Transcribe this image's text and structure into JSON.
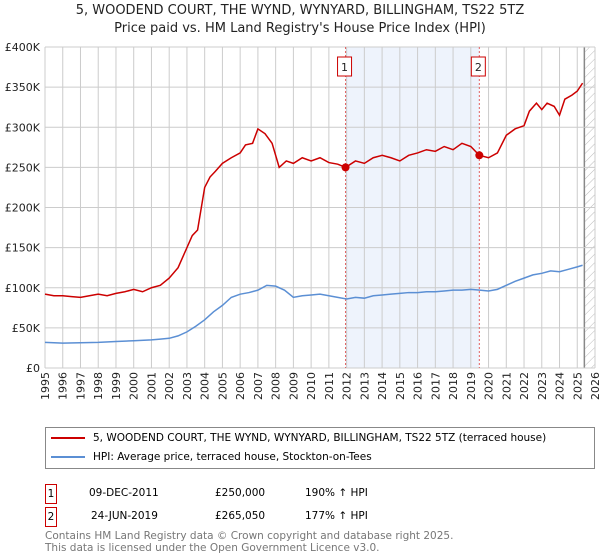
{
  "chart_data": {
    "type": "line",
    "title": "5, WOODEND COURT, THE WYND, WYNYARD, BILLINGHAM, TS22 5TZ",
    "subtitle": "Price paid vs. HM Land Registry's House Price Index (HPI)",
    "xlim": [
      1995,
      2026
    ],
    "ylim": [
      0,
      400000
    ],
    "yticks": [
      {
        "v": 0,
        "label": "£0"
      },
      {
        "v": 50000,
        "label": "£50K"
      },
      {
        "v": 100000,
        "label": "£100K"
      },
      {
        "v": 150000,
        "label": "£150K"
      },
      {
        "v": 200000,
        "label": "£200K"
      },
      {
        "v": 250000,
        "label": "£250K"
      },
      {
        "v": 300000,
        "label": "£300K"
      },
      {
        "v": 350000,
        "label": "£350K"
      },
      {
        "v": 400000,
        "label": "£400K"
      }
    ],
    "xticks": [
      "1995",
      "1996",
      "1997",
      "1998",
      "1999",
      "2000",
      "2001",
      "2002",
      "2003",
      "2004",
      "2005",
      "2006",
      "2007",
      "2008",
      "2009",
      "2010",
      "2011",
      "2012",
      "2013",
      "2014",
      "2015",
      "2016",
      "2017",
      "2018",
      "2019",
      "2020",
      "2021",
      "2022",
      "2023",
      "2024",
      "2025",
      "2026"
    ],
    "shaded_range": [
      2011.94,
      2019.48
    ],
    "forecast_start": 2025.4,
    "series": [
      {
        "name": "5, WOODEND COURT, THE WYND, WYNYARD, BILLINGHAM, TS22 5TZ (terraced house)",
        "color": "#cc0000",
        "x": [
          1995,
          1995.5,
          1996,
          1996.5,
          1997,
          1997.5,
          1998,
          1998.5,
          1999,
          1999.5,
          2000,
          2000.5,
          2001,
          2001.5,
          2002,
          2002.5,
          2003,
          2003.3,
          2003.6,
          2004,
          2004.3,
          2004.6,
          2005,
          2005.5,
          2006,
          2006.3,
          2006.7,
          2007,
          2007.4,
          2007.8,
          2008.2,
          2008.6,
          2009,
          2009.5,
          2010,
          2010.5,
          2011,
          2011.5,
          2011.94,
          2012.5,
          2013,
          2013.5,
          2014,
          2014.5,
          2015,
          2015.5,
          2016,
          2016.5,
          2017,
          2017.5,
          2018,
          2018.5,
          2019,
          2019.48,
          2020,
          2020.5,
          2021,
          2021.5,
          2022,
          2022.3,
          2022.7,
          2023,
          2023.3,
          2023.7,
          2024,
          2024.3,
          2024.7,
          2025,
          2025.3
        ],
        "y": [
          92000,
          90000,
          90000,
          89000,
          88000,
          90000,
          92000,
          90000,
          93000,
          95000,
          98000,
          95000,
          100000,
          103000,
          112000,
          125000,
          150000,
          165000,
          172000,
          225000,
          238000,
          245000,
          255000,
          262000,
          268000,
          278000,
          280000,
          298000,
          292000,
          280000,
          250000,
          258000,
          255000,
          262000,
          258000,
          262000,
          256000,
          254000,
          250000,
          258000,
          255000,
          262000,
          265000,
          262000,
          258000,
          265000,
          268000,
          272000,
          270000,
          276000,
          272000,
          280000,
          276000,
          265050,
          262000,
          268000,
          290000,
          298000,
          302000,
          320000,
          330000,
          322000,
          330000,
          326000,
          315000,
          335000,
          340000,
          345000,
          355000
        ]
      },
      {
        "name": "HPI: Average price, terraced house, Stockton-on-Tees",
        "color": "#5b8fd4",
        "x": [
          1995,
          1996,
          1997,
          1998,
          1999,
          2000,
          2001,
          2001.5,
          2002,
          2002.5,
          2003,
          2003.5,
          2004,
          2004.5,
          2005,
          2005.5,
          2006,
          2006.5,
          2007,
          2007.5,
          2008,
          2008.5,
          2009,
          2009.5,
          2010,
          2010.5,
          2011,
          2011.5,
          2012,
          2012.5,
          2013,
          2013.5,
          2014,
          2014.5,
          2015,
          2015.5,
          2016,
          2016.5,
          2017,
          2017.5,
          2018,
          2018.5,
          2019,
          2019.5,
          2020,
          2020.5,
          2021,
          2021.5,
          2022,
          2022.5,
          2023,
          2023.5,
          2024,
          2024.5,
          2025,
          2025.3
        ],
        "y": [
          32000,
          31000,
          31500,
          32000,
          33000,
          34000,
          35000,
          36000,
          37000,
          40000,
          45000,
          52000,
          60000,
          70000,
          78000,
          88000,
          92000,
          94000,
          97000,
          103000,
          102000,
          97000,
          88000,
          90000,
          91000,
          92000,
          90000,
          88000,
          86000,
          88000,
          87000,
          90000,
          91000,
          92000,
          93000,
          94000,
          94000,
          95000,
          95000,
          96000,
          97000,
          97000,
          98000,
          97000,
          96000,
          98000,
          103000,
          108000,
          112000,
          116000,
          118000,
          121000,
          120000,
          123000,
          126000,
          128000
        ]
      }
    ],
    "markers": [
      {
        "id": "1",
        "x": 2011.94,
        "y": 250000
      },
      {
        "id": "2",
        "x": 2019.48,
        "y": 265050
      }
    ]
  },
  "legend": {
    "red_label": "5, WOODEND COURT, THE WYND, WYNYARD, BILLINGHAM, TS22 5TZ (terraced house)",
    "blue_label": "HPI: Average price, terraced house, Stockton-on-Tees"
  },
  "transactions": [
    {
      "id": "1",
      "date": "09-DEC-2011",
      "price": "£250,000",
      "hpi": "190% ↑ HPI"
    },
    {
      "id": "2",
      "date": "24-JUN-2019",
      "price": "£265,050",
      "hpi": "177% ↑ HPI"
    }
  ],
  "footer": {
    "line1": "Contains HM Land Registry data © Crown copyright and database right 2025.",
    "line2": "This data is licensed under the Open Government Licence v3.0."
  }
}
